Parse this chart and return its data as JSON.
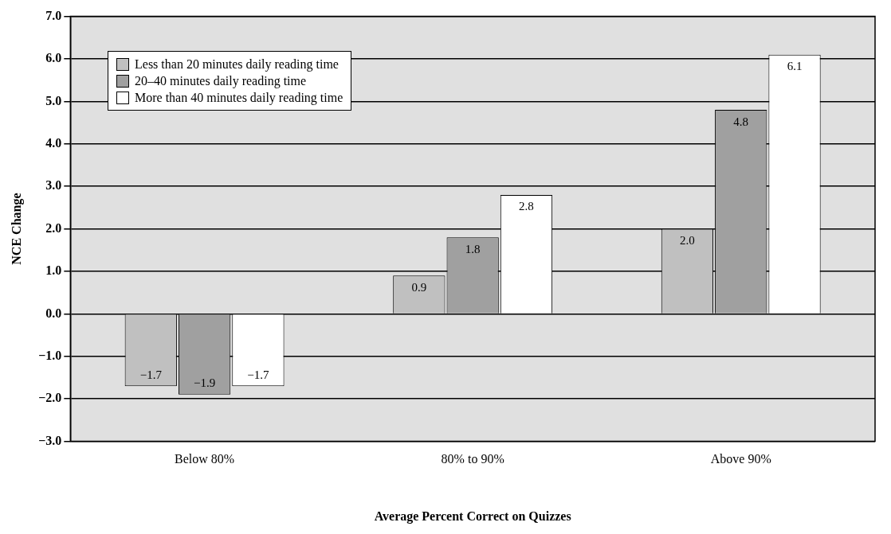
{
  "chart_data": {
    "type": "bar",
    "xlabel": "Average Percent Correct on Quizzes",
    "ylabel": "NCE Change",
    "categories": [
      "Below 80%",
      "80% to 90%",
      "Above 90%"
    ],
    "series": [
      {
        "name": "Less than 20 minutes daily reading time",
        "color": "#c0c0c0",
        "values": [
          -1.7,
          0.9,
          2.0
        ],
        "value_labels": [
          "−1.7",
          "0.9",
          "2.0"
        ]
      },
      {
        "name": "20–40 minutes daily reading time",
        "color": "#a0a0a0",
        "values": [
          -1.9,
          1.8,
          4.8
        ],
        "value_labels": [
          "−1.9",
          "1.8",
          "4.8"
        ]
      },
      {
        "name": "More than 40 minutes daily reading time",
        "color": "#ffffff",
        "values": [
          -1.7,
          2.8,
          6.1
        ],
        "value_labels": [
          "−1.7",
          "2.8",
          "6.1"
        ]
      }
    ],
    "ylim": [
      -3,
      7
    ],
    "yticks": [
      {
        "value": -3,
        "label": "−3.0"
      },
      {
        "value": -2,
        "label": "−2.0"
      },
      {
        "value": -1,
        "label": "−1.0"
      },
      {
        "value": 0,
        "label": "0.0"
      },
      {
        "value": 1,
        "label": "1.0"
      },
      {
        "value": 2,
        "label": "2.0"
      },
      {
        "value": 3,
        "label": "3.0"
      },
      {
        "value": 4,
        "label": "4.0"
      },
      {
        "value": 5,
        "label": "5.0"
      },
      {
        "value": 6,
        "label": "6.0"
      },
      {
        "value": 7,
        "label": "7.0"
      }
    ],
    "grid": "y",
    "legend": "top left"
  }
}
